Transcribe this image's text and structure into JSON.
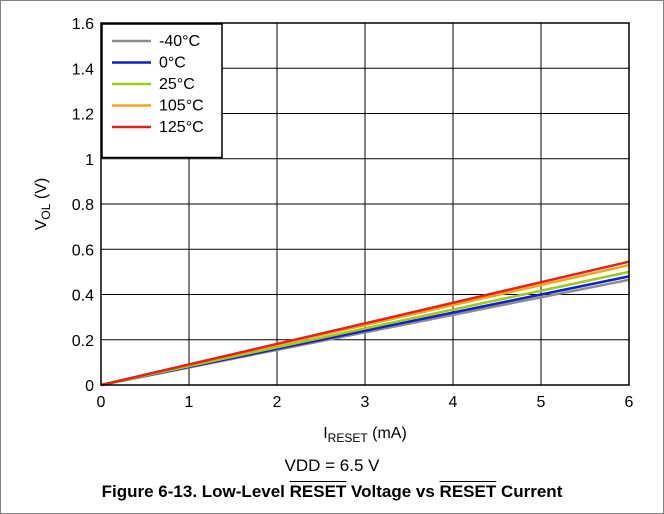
{
  "chart_data": {
    "type": "line",
    "title": "",
    "xlabel": {
      "main": "I",
      "sub": "RESET",
      "unit": " (mA)"
    },
    "ylabel": {
      "main": "V",
      "sub": "OL",
      "unit": " (V)"
    },
    "xlim": [
      0,
      6
    ],
    "ylim": [
      0,
      1.6
    ],
    "xticks": [
      "0",
      "1",
      "2",
      "3",
      "4",
      "5",
      "6"
    ],
    "yticks": [
      "0",
      "0.2",
      "0.4",
      "0.6",
      "0.8",
      "1",
      "1.2",
      "1.4",
      "1.6"
    ],
    "grid": true,
    "legend_position": "top-left",
    "series": [
      {
        "name": "-40°C",
        "color": "#8c8c8c",
        "x": [
          0,
          6
        ],
        "y": [
          0,
          0.465
        ]
      },
      {
        "name": "0°C",
        "color": "#1020d0",
        "x": [
          0,
          6
        ],
        "y": [
          0,
          0.48
        ]
      },
      {
        "name": "25°C",
        "color": "#9ccc1a",
        "x": [
          0,
          6
        ],
        "y": [
          0,
          0.5
        ]
      },
      {
        "name": "105°C",
        "color": "#f7a21b",
        "x": [
          0,
          6
        ],
        "y": [
          0,
          0.53
        ]
      },
      {
        "name": "125°C",
        "color": "#e2231a",
        "x": [
          0,
          6
        ],
        "y": [
          0,
          0.545
        ]
      }
    ]
  },
  "condition": "VDD = 6.5 V",
  "caption": {
    "prefix": "Figure 6-13. Low-Level ",
    "word1": "RESET",
    "middle": " Voltage vs ",
    "word2": "RESET",
    "suffix": " Current"
  }
}
